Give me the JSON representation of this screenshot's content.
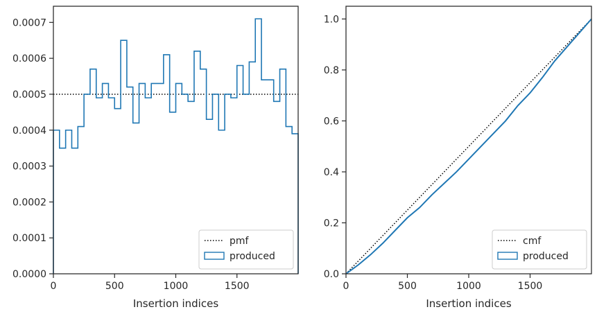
{
  "colors": {
    "series": "#1f77b4",
    "reference": "#000000",
    "axis": "#262626"
  },
  "chart_data": [
    {
      "type": "histogram-step",
      "xlabel": "Insertion indices",
      "ylabel": "",
      "xlim": [
        0,
        2000
      ],
      "ylim": [
        0,
        0.000745
      ],
      "xticks": [
        0,
        500,
        1000,
        1500
      ],
      "xtick_labels": [
        "0",
        "500",
        "1000",
        "1500"
      ],
      "yticks": [
        0,
        0.0001,
        0.0002,
        0.0003,
        0.0004,
        0.0005,
        0.0006,
        0.0007
      ],
      "ytick_labels": [
        "0.0000",
        "0.0001",
        "0.0002",
        "0.0003",
        "0.0004",
        "0.0005",
        "0.0006",
        "0.0007"
      ],
      "grid": false,
      "legend_position": "lower-right",
      "legend": [
        {
          "label": "pmf",
          "style": "dotted-line"
        },
        {
          "label": "produced",
          "style": "step-patch"
        }
      ],
      "reference_line": {
        "name": "pmf",
        "y": 0.0005
      },
      "bin_edges": [
        0,
        50,
        100,
        150,
        200,
        250,
        300,
        350,
        400,
        450,
        500,
        550,
        600,
        650,
        700,
        750,
        800,
        850,
        900,
        950,
        1000,
        1050,
        1100,
        1150,
        1200,
        1250,
        1300,
        1350,
        1400,
        1450,
        1500,
        1550,
        1600,
        1650,
        1700,
        1750,
        1800,
        1850,
        1900,
        1950,
        2000
      ],
      "values": [
        0.0004,
        0.00035,
        0.0004,
        0.00035,
        0.00041,
        0.0005,
        0.00057,
        0.00049,
        0.00053,
        0.00049,
        0.00046,
        0.00065,
        0.00052,
        0.00042,
        0.00053,
        0.00049,
        0.00053,
        0.00053,
        0.00061,
        0.00045,
        0.00053,
        0.0005,
        0.00048,
        0.00062,
        0.00057,
        0.00043,
        0.0005,
        0.0004,
        0.0005,
        0.00049,
        0.00058,
        0.0005,
        0.00059,
        0.00071,
        0.00054,
        0.00054,
        0.00048,
        0.00057,
        0.00041,
        0.00039
      ]
    },
    {
      "type": "line",
      "xlabel": "Insertion indices",
      "ylabel": "",
      "xlim": [
        0,
        2000
      ],
      "ylim": [
        0,
        1.05
      ],
      "xticks": [
        0,
        500,
        1000,
        1500
      ],
      "xtick_labels": [
        "0",
        "500",
        "1000",
        "1500"
      ],
      "yticks": [
        0,
        0.2,
        0.4,
        0.6,
        0.8,
        1.0
      ],
      "ytick_labels": [
        "0.0",
        "0.2",
        "0.4",
        "0.6",
        "0.8",
        "1.0"
      ],
      "grid": false,
      "legend_position": "lower-right",
      "legend": [
        {
          "label": "cmf",
          "style": "dotted-line"
        },
        {
          "label": "produced",
          "style": "step-patch"
        }
      ],
      "reference_line": {
        "name": "cmf",
        "x": [
          0,
          2000
        ],
        "y": [
          0,
          1.0
        ]
      },
      "series": [
        {
          "x": [
            0,
            100,
            200,
            300,
            400,
            500,
            600,
            700,
            800,
            900,
            1000,
            1100,
            1200,
            1300,
            1400,
            1500,
            1600,
            1700,
            1800,
            1900,
            2000
          ],
          "y": [
            0,
            0.035,
            0.075,
            0.12,
            0.17,
            0.22,
            0.26,
            0.31,
            0.355,
            0.4,
            0.45,
            0.5,
            0.55,
            0.6,
            0.66,
            0.71,
            0.77,
            0.835,
            0.89,
            0.945,
            1.0
          ]
        }
      ]
    }
  ]
}
